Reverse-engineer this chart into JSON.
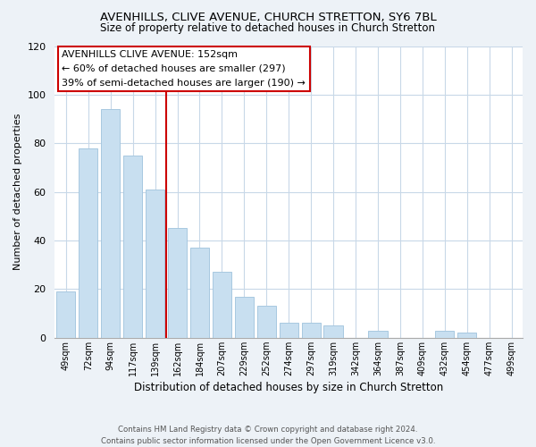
{
  "title": "AVENHILLS, CLIVE AVENUE, CHURCH STRETTON, SY6 7BL",
  "subtitle": "Size of property relative to detached houses in Church Stretton",
  "xlabel": "Distribution of detached houses by size in Church Stretton",
  "ylabel": "Number of detached properties",
  "bar_labels": [
    "49sqm",
    "72sqm",
    "94sqm",
    "117sqm",
    "139sqm",
    "162sqm",
    "184sqm",
    "207sqm",
    "229sqm",
    "252sqm",
    "274sqm",
    "297sqm",
    "319sqm",
    "342sqm",
    "364sqm",
    "387sqm",
    "409sqm",
    "432sqm",
    "454sqm",
    "477sqm",
    "499sqm"
  ],
  "bar_values": [
    19,
    78,
    94,
    75,
    61,
    45,
    37,
    27,
    17,
    13,
    6,
    6,
    5,
    0,
    3,
    0,
    0,
    3,
    2,
    0,
    0
  ],
  "bar_color": "#c8dff0",
  "bar_edge_color": "#a8c8e0",
  "vline_x_idx": 5,
  "vline_color": "#cc0000",
  "annotation_title": "AVENHILLS CLIVE AVENUE: 152sqm",
  "annotation_line1": "← 60% of detached houses are smaller (297)",
  "annotation_line2": "39% of semi-detached houses are larger (190) →",
  "annotation_box_color": "#ffffff",
  "annotation_box_edge": "#cc0000",
  "ylim": [
    0,
    120
  ],
  "yticks": [
    0,
    20,
    40,
    60,
    80,
    100,
    120
  ],
  "footer1": "Contains HM Land Registry data © Crown copyright and database right 2024.",
  "footer2": "Contains public sector information licensed under the Open Government Licence v3.0.",
  "bg_color": "#edf2f7",
  "plot_bg_color": "#ffffff",
  "grid_color": "#c8d8e8"
}
